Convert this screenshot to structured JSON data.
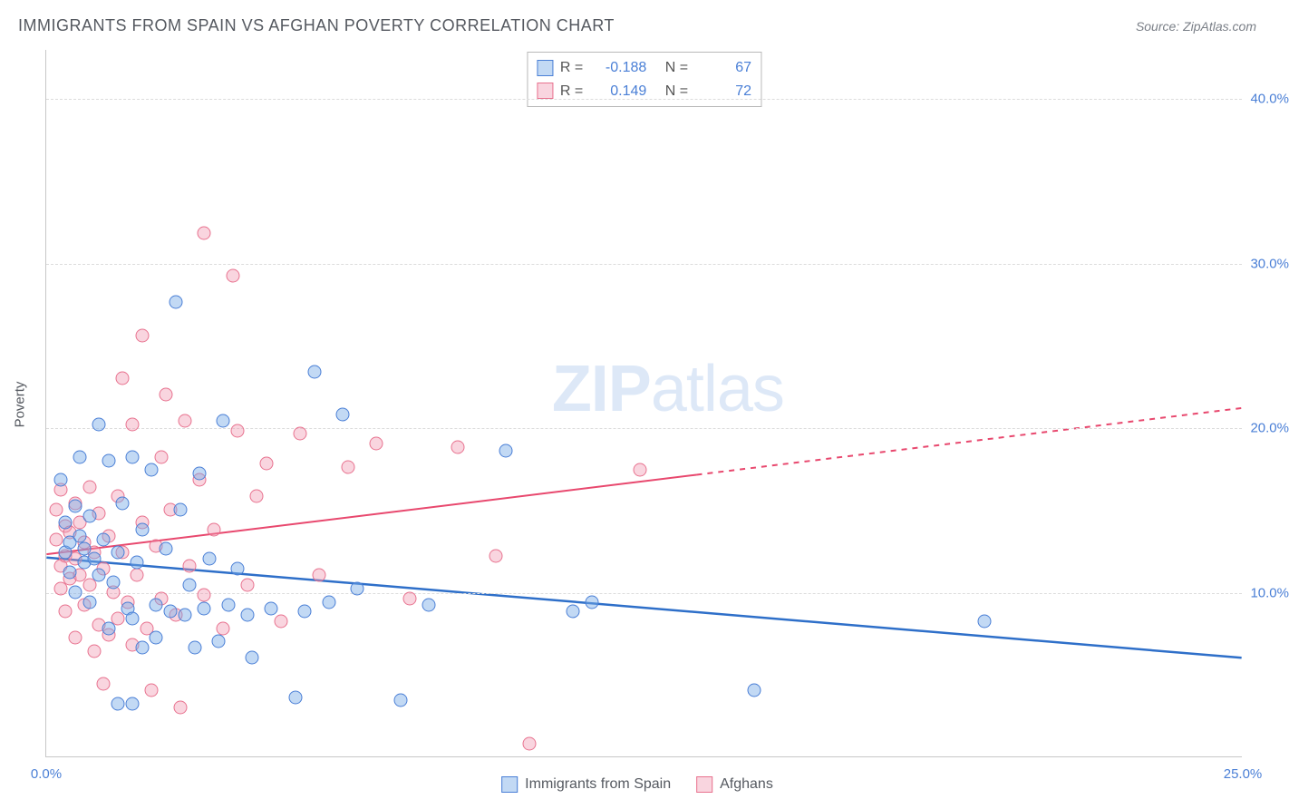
{
  "title": "IMMIGRANTS FROM SPAIN VS AFGHAN POVERTY CORRELATION CHART",
  "source_label": "Source:",
  "source_name": "ZipAtlas.com",
  "y_axis_title": "Poverty",
  "watermark": {
    "zip": "ZIP",
    "atlas": "atlas"
  },
  "chart": {
    "type": "scatter",
    "xlim": [
      0,
      25
    ],
    "ylim": [
      0,
      43
    ],
    "x_ticks": [
      {
        "value": 0,
        "label": "0.0%"
      },
      {
        "value": 25,
        "label": "25.0%"
      }
    ],
    "y_gridlines": [
      {
        "value": 10,
        "label": "10.0%"
      },
      {
        "value": 20,
        "label": "20.0%"
      },
      {
        "value": 30,
        "label": "30.0%"
      },
      {
        "value": 40,
        "label": "40.0%"
      }
    ],
    "grid_color": "#dcdcdc",
    "axis_color": "#c7c7c7",
    "tick_label_color": "#4a7fd6",
    "tick_fontsize": 15,
    "point_radius": 7.5,
    "background_color": "#ffffff"
  },
  "series": {
    "spain": {
      "label": "Immigrants from Spain",
      "color_fill": "rgba(120,170,230,0.45)",
      "color_stroke": "#4a7fd6",
      "R": "-0.188",
      "N": "67",
      "trend": {
        "x1": 0,
        "y1": 12.1,
        "x2": 25,
        "y2": 6.0,
        "stroke": "#2e6fc9",
        "width": 2.5,
        "dash_after_x": null
      },
      "points": [
        [
          0.3,
          16.8
        ],
        [
          0.4,
          14.2
        ],
        [
          0.4,
          12.4
        ],
        [
          0.5,
          13.0
        ],
        [
          0.5,
          11.2
        ],
        [
          0.6,
          15.2
        ],
        [
          0.6,
          10.0
        ],
        [
          0.7,
          13.4
        ],
        [
          0.7,
          18.2
        ],
        [
          0.8,
          11.8
        ],
        [
          0.8,
          12.6
        ],
        [
          0.9,
          14.6
        ],
        [
          0.9,
          9.4
        ],
        [
          1.0,
          12.0
        ],
        [
          1.1,
          20.2
        ],
        [
          1.1,
          11.0
        ],
        [
          1.2,
          13.2
        ],
        [
          1.3,
          18.0
        ],
        [
          1.3,
          7.8
        ],
        [
          1.4,
          10.6
        ],
        [
          1.5,
          12.4
        ],
        [
          1.5,
          3.2
        ],
        [
          1.6,
          15.4
        ],
        [
          1.7,
          9.0
        ],
        [
          1.8,
          18.2
        ],
        [
          1.8,
          8.4
        ],
        [
          1.8,
          3.2
        ],
        [
          1.9,
          11.8
        ],
        [
          2.0,
          13.8
        ],
        [
          2.0,
          6.6
        ],
        [
          2.2,
          17.4
        ],
        [
          2.3,
          9.2
        ],
        [
          2.3,
          7.2
        ],
        [
          2.5,
          12.6
        ],
        [
          2.6,
          8.8
        ],
        [
          2.7,
          27.6
        ],
        [
          2.8,
          15.0
        ],
        [
          2.9,
          8.6
        ],
        [
          3.0,
          10.4
        ],
        [
          3.1,
          6.6
        ],
        [
          3.2,
          17.2
        ],
        [
          3.3,
          9.0
        ],
        [
          3.4,
          12.0
        ],
        [
          3.6,
          7.0
        ],
        [
          3.7,
          20.4
        ],
        [
          3.8,
          9.2
        ],
        [
          4.0,
          11.4
        ],
        [
          4.2,
          8.6
        ],
        [
          4.3,
          6.0
        ],
        [
          4.7,
          9.0
        ],
        [
          5.2,
          3.6
        ],
        [
          5.4,
          8.8
        ],
        [
          5.6,
          23.4
        ],
        [
          5.9,
          9.4
        ],
        [
          6.2,
          20.8
        ],
        [
          6.5,
          10.2
        ],
        [
          7.4,
          3.4
        ],
        [
          8.0,
          9.2
        ],
        [
          9.6,
          18.6
        ],
        [
          11.0,
          8.8
        ],
        [
          11.4,
          9.4
        ],
        [
          14.8,
          4.0
        ],
        [
          19.6,
          8.2
        ]
      ]
    },
    "afghans": {
      "label": "Afghans",
      "color_fill": "rgba(240,150,175,0.40)",
      "color_stroke": "#e8728f",
      "R": "0.149",
      "N": "72",
      "trend": {
        "x1": 0,
        "y1": 12.3,
        "x2": 25,
        "y2": 21.2,
        "stroke": "#e8486e",
        "width": 2,
        "dash_after_x": 13.6
      },
      "points": [
        [
          0.2,
          15.0
        ],
        [
          0.2,
          13.2
        ],
        [
          0.3,
          11.6
        ],
        [
          0.3,
          16.2
        ],
        [
          0.3,
          10.2
        ],
        [
          0.4,
          14.0
        ],
        [
          0.4,
          12.2
        ],
        [
          0.4,
          8.8
        ],
        [
          0.5,
          13.6
        ],
        [
          0.5,
          10.8
        ],
        [
          0.6,
          15.4
        ],
        [
          0.6,
          12.0
        ],
        [
          0.6,
          7.2
        ],
        [
          0.7,
          14.2
        ],
        [
          0.7,
          11.0
        ],
        [
          0.8,
          9.2
        ],
        [
          0.8,
          13.0
        ],
        [
          0.9,
          16.4
        ],
        [
          0.9,
          10.4
        ],
        [
          1.0,
          12.4
        ],
        [
          1.0,
          6.4
        ],
        [
          1.1,
          14.8
        ],
        [
          1.1,
          8.0
        ],
        [
          1.2,
          11.4
        ],
        [
          1.2,
          4.4
        ],
        [
          1.3,
          13.4
        ],
        [
          1.3,
          7.4
        ],
        [
          1.4,
          10.0
        ],
        [
          1.5,
          15.8
        ],
        [
          1.5,
          8.4
        ],
        [
          1.6,
          23.0
        ],
        [
          1.6,
          12.4
        ],
        [
          1.7,
          9.4
        ],
        [
          1.8,
          20.2
        ],
        [
          1.8,
          6.8
        ],
        [
          1.9,
          11.0
        ],
        [
          2.0,
          25.6
        ],
        [
          2.0,
          14.2
        ],
        [
          2.1,
          7.8
        ],
        [
          2.2,
          4.0
        ],
        [
          2.3,
          12.8
        ],
        [
          2.4,
          18.2
        ],
        [
          2.4,
          9.6
        ],
        [
          2.5,
          22.0
        ],
        [
          2.6,
          15.0
        ],
        [
          2.7,
          8.6
        ],
        [
          2.8,
          3.0
        ],
        [
          2.9,
          20.4
        ],
        [
          3.0,
          11.6
        ],
        [
          3.2,
          16.8
        ],
        [
          3.3,
          9.8
        ],
        [
          3.3,
          31.8
        ],
        [
          3.5,
          13.8
        ],
        [
          3.7,
          7.8
        ],
        [
          3.9,
          29.2
        ],
        [
          4.0,
          19.8
        ],
        [
          4.2,
          10.4
        ],
        [
          4.4,
          15.8
        ],
        [
          4.6,
          17.8
        ],
        [
          4.9,
          8.2
        ],
        [
          5.3,
          19.6
        ],
        [
          5.7,
          11.0
        ],
        [
          6.3,
          17.6
        ],
        [
          6.9,
          19.0
        ],
        [
          7.6,
          9.6
        ],
        [
          8.6,
          18.8
        ],
        [
          9.4,
          12.2
        ],
        [
          10.1,
          0.8
        ],
        [
          12.4,
          17.4
        ]
      ]
    }
  },
  "legend_stats": {
    "r_label": "R =",
    "n_label": "N ="
  },
  "legend_bottom": [
    {
      "key": "spain",
      "swatch": "blue"
    },
    {
      "key": "afghans",
      "swatch": "pink"
    }
  ]
}
